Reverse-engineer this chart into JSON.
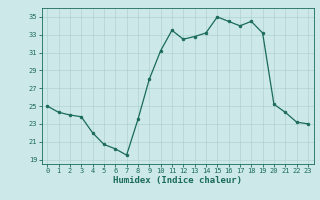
{
  "x": [
    0,
    1,
    2,
    3,
    4,
    5,
    6,
    7,
    8,
    9,
    10,
    11,
    12,
    13,
    14,
    15,
    16,
    17,
    18,
    19,
    20,
    21,
    22,
    23
  ],
  "y": [
    25.0,
    24.3,
    24.0,
    23.8,
    22.0,
    20.7,
    20.2,
    19.5,
    23.5,
    28.0,
    31.2,
    33.5,
    32.5,
    32.8,
    33.2,
    35.0,
    34.5,
    34.0,
    34.5,
    33.2,
    25.2,
    24.3,
    23.2,
    23.0
  ],
  "ylim": [
    18.5,
    36.0
  ],
  "yticks": [
    19,
    21,
    23,
    25,
    27,
    29,
    31,
    33,
    35
  ],
  "xticks": [
    0,
    1,
    2,
    3,
    4,
    5,
    6,
    7,
    8,
    9,
    10,
    11,
    12,
    13,
    14,
    15,
    16,
    17,
    18,
    19,
    20,
    21,
    22,
    23
  ],
  "xlabel": "Humidex (Indice chaleur)",
  "line_color": "#1a6b5a",
  "marker": "o",
  "marker_size": 2.0,
  "bg_color": "#cce8e8",
  "grid_color": "#aacccc",
  "fig_bg": "#cce8e8",
  "tick_color": "#1a6b5a",
  "spine_color": "#1a6b5a"
}
